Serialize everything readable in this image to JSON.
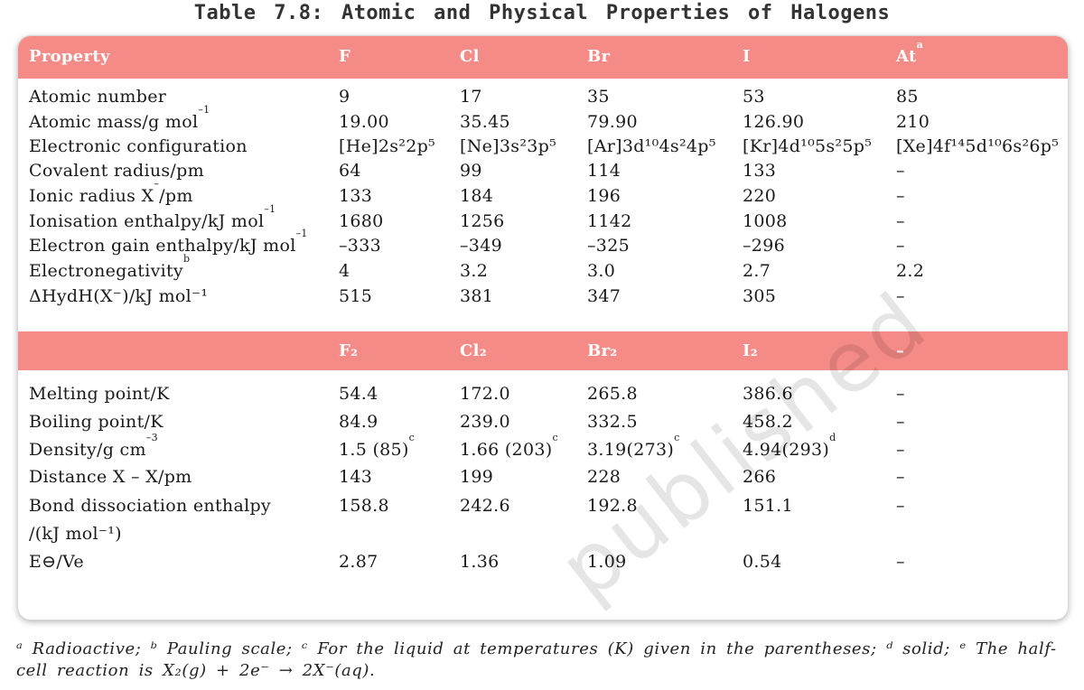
{
  "caption": "Table 7.8: Atomic and Physical Properties of Halogens",
  "header1": {
    "property": "Property",
    "F": "F",
    "Cl": "Cl",
    "Br": "Br",
    "I": "I",
    "At": "At",
    "At_sup": "a"
  },
  "rows1": [
    {
      "label": "Atomic number",
      "F": "9",
      "Cl": "17",
      "Br": "35",
      "I": "53",
      "At": "85"
    },
    {
      "label": "Atomic mass/g mol",
      "label_sup": "–1",
      "F": "19.00",
      "Cl": "35.45",
      "Br": "79.90",
      "I": "126.90",
      "At": "210"
    },
    {
      "label": "Electronic configuration",
      "F": "[He]2s²2p⁵",
      "Cl": "[Ne]3s²3p⁵",
      "Br": "[Ar]3d¹⁰4s²4p⁵",
      "I": "[Kr]4d¹⁰5s²5p⁵",
      "At": "[Xe]4f¹⁴5d¹⁰6s²6p⁵"
    },
    {
      "label": "Covalent radius/pm",
      "F": "64",
      "Cl": "99",
      "Br": "114",
      "I": "133",
      "At": "–"
    },
    {
      "label": "Ionic radius X",
      "label_sup": "–",
      "label_tail": "/pm",
      "F": "133",
      "Cl": "184",
      "Br": "196",
      "I": "220",
      "At": "–"
    },
    {
      "label": "Ionisation enthalpy/kJ mol",
      "label_sup": "–1",
      "F": "1680",
      "Cl": "1256",
      "Br": "1142",
      "I": "1008",
      "At": "–"
    },
    {
      "label": "Electron gain enthalpy/kJ mol",
      "label_sup": "–1",
      "F": "–333",
      "Cl": "–349",
      "Br": "–325",
      "I": "–296",
      "At": "–"
    },
    {
      "label": "Electronegativity",
      "label_sup": "b",
      "F": "4",
      "Cl": "3.2",
      "Br": "3.0",
      "I": "2.7",
      "At": "2.2"
    },
    {
      "label": "ΔHydH(X⁻)/kJ mol⁻¹",
      "F": "515",
      "Cl": "381",
      "Br": "347",
      "I": "305",
      "At": "–"
    }
  ],
  "header2": {
    "F2": "F₂",
    "Cl2": "Cl₂",
    "Br2": "Br₂",
    "I2": "I₂",
    "At": "–"
  },
  "rows2": [
    {
      "label": "Melting point/K",
      "F": "54.4",
      "Cl": "172.0",
      "Br": "265.8",
      "I": "386.6",
      "At": "–"
    },
    {
      "label": "Boiling point/K",
      "F": "84.9",
      "Cl": "239.0",
      "Br": "332.5",
      "I": "458.2",
      "At": "–"
    },
    {
      "label": "Density/g cm",
      "label_sup": "–3",
      "F": "1.5 (85)",
      "F_sup": "c",
      "Cl": "1.66 (203)",
      "Cl_sup": "c",
      "Br": "3.19(273)",
      "Br_sup": "c",
      "I": "4.94(293)",
      "I_sup": "d",
      "At": "–"
    },
    {
      "label": "Distance X – X/pm",
      "F": "143",
      "Cl": "199",
      "Br": "228",
      "I": "266",
      "At": "–"
    },
    {
      "label": "Bond dissociation enthalpy",
      "label2": "/(kJ mol⁻¹)",
      "F": "158.8",
      "Cl": "242.6",
      "Br": "192.8",
      "I": "151.1",
      "At": "–"
    },
    {
      "label": "E⊖/Ve",
      "F": "2.87",
      "Cl": "1.36",
      "Br": "1.09",
      "I": "0.54",
      "At": "–"
    }
  ],
  "footnote": "ᵃ Radioactive; ᵇ Pauling scale; ᶜ For the liquid at temperatures (K) given in the parentheses; ᵈ solid; ᵉ The half-cell reaction is X₂(g) + 2e⁻ → 2X⁻(aq).",
  "watermark": "published",
  "colors": {
    "header_bg": "#f48b87",
    "header_text": "#ffffff"
  }
}
